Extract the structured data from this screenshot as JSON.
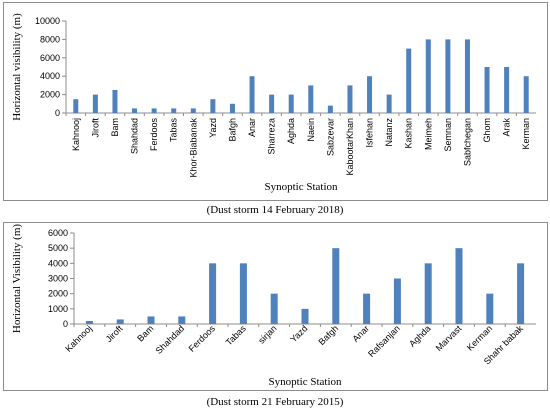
{
  "chart_data": [
    {
      "type": "bar",
      "caption": "(Dust storm 14 February 2018)",
      "xlabel": "Synoptic Station",
      "ylabel": "Horizontal visibility (m)",
      "ylim": [
        0,
        10000
      ],
      "yticks": [
        0,
        2000,
        4000,
        6000,
        8000,
        10000
      ],
      "grid": false,
      "color": "#4f81bd",
      "categories": [
        "Kahnooj",
        "Jiroft",
        "Bam",
        "Shahdad",
        "Ferdoos",
        "Tabas",
        "Khor-Biabanak",
        "Yazd",
        "Bafgh",
        "Anar",
        "Sharreza",
        "Aghda",
        "Naein",
        "Sabzevar",
        "KabootarKhan",
        "Isfehan",
        "Natanz",
        "Kashan",
        "Meimeh",
        "Semnan",
        "Sabfchegan",
        "Ghom",
        "Arak",
        "Kerman"
      ],
      "values": [
        1500,
        2000,
        2500,
        500,
        500,
        500,
        500,
        1500,
        1000,
        4000,
        2000,
        2000,
        3000,
        800,
        3000,
        4000,
        2000,
        7000,
        8000,
        8000,
        8000,
        5000,
        5000,
        4000
      ]
    },
    {
      "type": "bar",
      "caption": "(Dust storm 21 February 2015)",
      "xlabel": "Synoptic Station",
      "ylabel": "Horizontal Visibility (m)",
      "ylim": [
        0,
        6000
      ],
      "yticks": [
        0,
        1000,
        2000,
        3000,
        4000,
        5000,
        6000
      ],
      "grid": false,
      "color": "#4f81bd",
      "categories": [
        "Kahnooj",
        "Jiroft",
        "Bam",
        "Shahdad",
        "Ferdoos",
        "Tabas",
        "sirjan",
        "Yazd",
        "Bafgh",
        "Anar",
        "Rafsanjan",
        "Aghda",
        "Marvast",
        "Kerman",
        "Shahr babak"
      ],
      "values": [
        200,
        300,
        500,
        500,
        4000,
        4000,
        2000,
        1000,
        5000,
        2000,
        3000,
        4000,
        5000,
        2000,
        4000
      ]
    }
  ]
}
